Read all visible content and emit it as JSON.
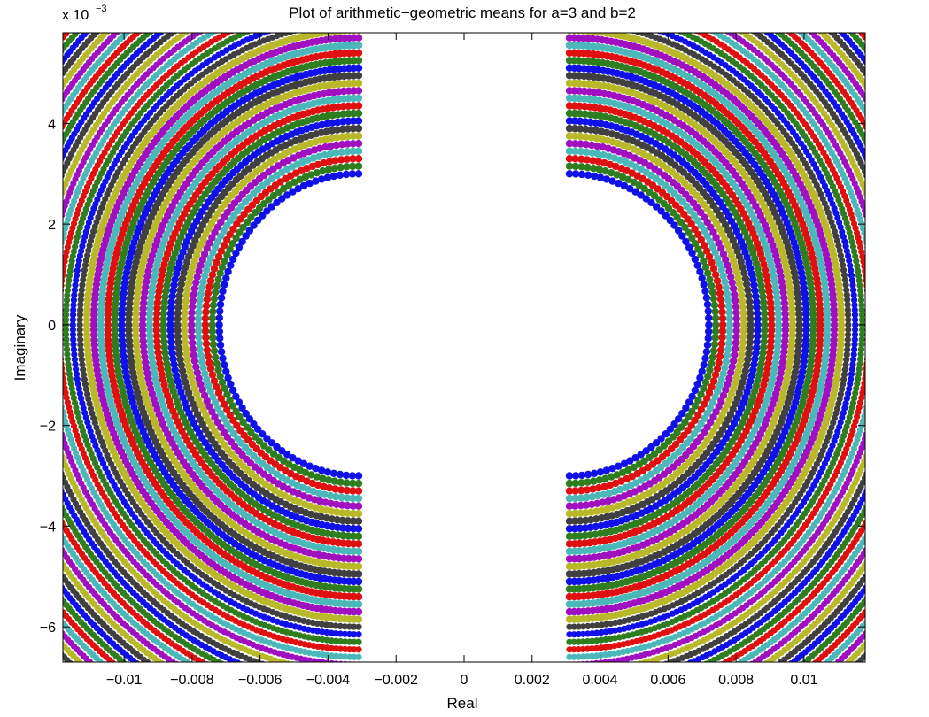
{
  "chart_data": {
    "type": "scatter",
    "title": "Plot of arithmetic−geometric means for a=3 and b=2",
    "xlabel": "Real",
    "ylabel": "Imaginary",
    "y_exponent_base": "x 10",
    "y_exponent_power": "−3",
    "xlim": [
      -0.0118,
      0.0118
    ],
    "ylim": [
      -6.7,
      5.8
    ],
    "x_ticks": [
      -0.01,
      -0.008,
      -0.006,
      -0.004,
      -0.002,
      0,
      0.002,
      0.004,
      0.006,
      0.008,
      0.01
    ],
    "x_tick_labels": [
      "−0.01",
      "−0.008",
      "−0.006",
      "−0.004",
      "−0.002",
      "0",
      "0.002",
      "0.004",
      "0.006",
      "0.008",
      "0.01"
    ],
    "y_ticks": [
      -6,
      -4,
      -2,
      0,
      2,
      4
    ],
    "y_tick_labels": [
      "−6",
      "−4",
      "−2",
      "0",
      "2",
      "4"
    ],
    "grid": false,
    "legend": "none",
    "colors": [
      "#1010e8",
      "#2e7d1e",
      "#e01010",
      "#4ab8b8",
      "#a010c0",
      "#b8b828",
      "#404040"
    ],
    "pattern": {
      "description": "concentric elliptical rings of points around two centers",
      "left_center": [
        -0.0031,
        0.0
      ],
      "right_center": [
        0.0031,
        0.0
      ],
      "inner_radius_x": 0.0041,
      "inner_radius_y": 3.0,
      "ring_count": 46,
      "ring_spacing_x": 0.000205,
      "ring_spacing_y": 0.15,
      "cusp_y_top": 3.0,
      "cusp_y_bottom": -3.0,
      "cusp_x": 0.0031
    }
  }
}
